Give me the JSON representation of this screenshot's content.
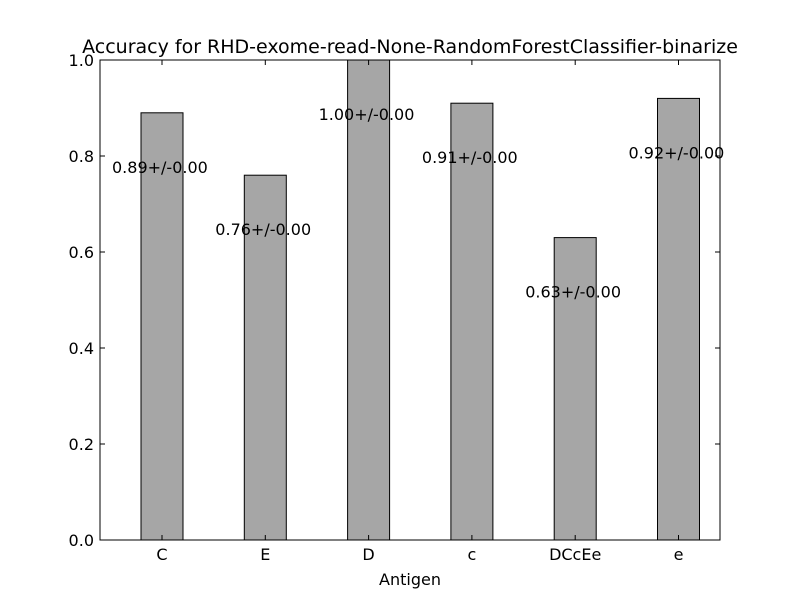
{
  "chart_data": {
    "type": "bar",
    "title": "Accuracy for RHD-exome-read-None-RandomForestClassifier-binarize",
    "xlabel": "Antigen",
    "ylabel": "",
    "categories": [
      "C",
      "E",
      "D",
      "c",
      "DCcEe",
      "e"
    ],
    "values": [
      0.89,
      0.76,
      1.0,
      0.91,
      0.63,
      0.92
    ],
    "bar_labels": [
      "0.89+/-0.00",
      "0.76+/-0.00",
      "1.00+/-0.00",
      "0.91+/-0.00",
      "0.63+/-0.00",
      "0.92+/-0.00"
    ],
    "ylim": [
      0,
      1.0
    ],
    "yticks": [
      "0.0",
      "0.2",
      "0.4",
      "0.6",
      "0.8",
      "1.0"
    ],
    "grid": false,
    "bar_color": "#a6a6a6",
    "edge_color": "#000000"
  }
}
